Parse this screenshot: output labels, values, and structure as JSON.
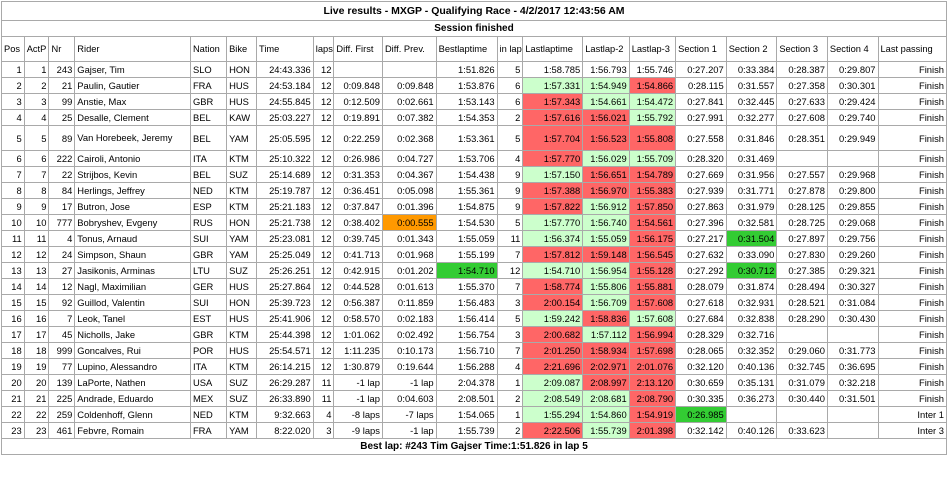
{
  "header": {
    "title": "Live results - MXGP - Qualifying Race - 4/2/2017 12:43:56 AM",
    "status": "Session finished"
  },
  "columns": [
    "Pos",
    "ActP",
    "Nr",
    "Rider",
    "Nation",
    "Bike",
    "Time",
    "laps",
    "Diff. First",
    "Diff. Prev.",
    "Bestlaptime",
    "in lap",
    "Lastlaptime",
    "Lastlap-2",
    "Lastlap-3",
    "Section 1",
    "Section 2",
    "Section 3",
    "Section 4",
    "Last passing"
  ],
  "colors": {
    "green": "#ccffcc",
    "red": "#ff6666",
    "orange": "#ff9900",
    "bright_green": "#33cc33"
  },
  "rows": [
    {
      "cells": [
        "1",
        "1",
        "243",
        "Gajser, Tim",
        "SLO",
        "HON",
        "24:43.336",
        "12",
        "",
        "",
        "1:51.826",
        "5",
        "1:58.785",
        "1:56.793",
        "1:55.746",
        "0:27.207",
        "0:33.384",
        "0:28.387",
        "0:29.807",
        "Finish"
      ],
      "hl": {}
    },
    {
      "cells": [
        "2",
        "2",
        "21",
        "Paulin, Gautier",
        "FRA",
        "HUS",
        "24:53.184",
        "12",
        "0:09.848",
        "0:09.848",
        "1:53.876",
        "6",
        "1:57.331",
        "1:54.949",
        "1:54.866",
        "0:28.115",
        "0:31.557",
        "0:27.358",
        "0:30.301",
        "Finish"
      ],
      "hl": {
        "12": "green",
        "13": "green",
        "14": "red"
      }
    },
    {
      "cells": [
        "3",
        "3",
        "99",
        "Anstie, Max",
        "GBR",
        "HUS",
        "24:55.845",
        "12",
        "0:12.509",
        "0:02.661",
        "1:53.143",
        "6",
        "1:57.343",
        "1:54.661",
        "1:54.472",
        "0:27.841",
        "0:32.445",
        "0:27.633",
        "0:29.424",
        "Finish"
      ],
      "hl": {
        "12": "red",
        "13": "green",
        "14": "green"
      }
    },
    {
      "cells": [
        "4",
        "4",
        "25",
        "Desalle, Clement",
        "BEL",
        "KAW",
        "25:03.227",
        "12",
        "0:19.891",
        "0:07.382",
        "1:54.353",
        "2",
        "1:57.616",
        "1:56.021",
        "1:55.792",
        "0:27.991",
        "0:32.277",
        "0:27.608",
        "0:29.740",
        "Finish"
      ],
      "hl": {
        "12": "red",
        "13": "red",
        "14": "green"
      }
    },
    {
      "cells": [
        "5",
        "5",
        "89",
        "Van Horebeek, Jeremy",
        "BEL",
        "YAM",
        "25:05.595",
        "12",
        "0:22.259",
        "0:02.368",
        "1:53.361",
        "5",
        "1:57.704",
        "1:56.523",
        "1:55.808",
        "0:27.558",
        "0:31.846",
        "0:28.351",
        "0:29.949",
        "Finish"
      ],
      "hl": {
        "12": "red",
        "13": "red",
        "14": "red"
      },
      "tall": true
    },
    {
      "cells": [
        "6",
        "6",
        "222",
        "Cairoli, Antonio",
        "ITA",
        "KTM",
        "25:10.322",
        "12",
        "0:26.986",
        "0:04.727",
        "1:53.706",
        "4",
        "1:57.770",
        "1:56.029",
        "1:55.709",
        "0:28.320",
        "0:31.469",
        "",
        "",
        "Finish"
      ],
      "hl": {
        "12": "red",
        "13": "green",
        "14": "green"
      }
    },
    {
      "cells": [
        "7",
        "7",
        "22",
        "Strijbos, Kevin",
        "BEL",
        "SUZ",
        "25:14.689",
        "12",
        "0:31.353",
        "0:04.367",
        "1:54.438",
        "9",
        "1:57.150",
        "1:56.651",
        "1:54.789",
        "0:27.669",
        "0:31.956",
        "0:27.557",
        "0:29.968",
        "Finish"
      ],
      "hl": {
        "12": "green",
        "13": "red",
        "14": "red"
      }
    },
    {
      "cells": [
        "8",
        "8",
        "84",
        "Herlings, Jeffrey",
        "NED",
        "KTM",
        "25:19.787",
        "12",
        "0:36.451",
        "0:05.098",
        "1:55.361",
        "9",
        "1:57.388",
        "1:56.970",
        "1:55.383",
        "0:27.939",
        "0:31.771",
        "0:27.878",
        "0:29.800",
        "Finish"
      ],
      "hl": {
        "12": "red",
        "13": "red",
        "14": "red"
      }
    },
    {
      "cells": [
        "9",
        "9",
        "17",
        "Butron, Jose",
        "ESP",
        "KTM",
        "25:21.183",
        "12",
        "0:37.847",
        "0:01.396",
        "1:54.875",
        "9",
        "1:57.822",
        "1:56.912",
        "1:57.850",
        "0:27.863",
        "0:31.979",
        "0:28.125",
        "0:29.855",
        "Finish"
      ],
      "hl": {
        "12": "red",
        "13": "green",
        "14": "red"
      }
    },
    {
      "cells": [
        "10",
        "10",
        "777",
        "Bobryshev, Evgeny",
        "RUS",
        "HON",
        "25:21.738",
        "12",
        "0:38.402",
        "0:00.555",
        "1:54.530",
        "5",
        "1:57.770",
        "1:56.740",
        "1:54.561",
        "0:27.396",
        "0:32.581",
        "0:28.725",
        "0:29.068",
        "Finish"
      ],
      "hl": {
        "9": "orange",
        "12": "green",
        "13": "green",
        "14": "red"
      }
    },
    {
      "cells": [
        "11",
        "11",
        "4",
        "Tonus, Arnaud",
        "SUI",
        "YAM",
        "25:23.081",
        "12",
        "0:39.745",
        "0:01.343",
        "1:55.059",
        "11",
        "1:56.374",
        "1:55.059",
        "1:56.175",
        "0:27.217",
        "0:31.504",
        "0:27.897",
        "0:29.756",
        "Finish"
      ],
      "hl": {
        "12": "green",
        "13": "green",
        "14": "red",
        "16": "bright_green"
      }
    },
    {
      "cells": [
        "12",
        "12",
        "24",
        "Simpson, Shaun",
        "GBR",
        "YAM",
        "25:25.049",
        "12",
        "0:41.713",
        "0:01.968",
        "1:55.199",
        "7",
        "1:57.812",
        "1:59.148",
        "1:56.545",
        "0:27.632",
        "0:33.090",
        "0:27.830",
        "0:29.260",
        "Finish"
      ],
      "hl": {
        "12": "red",
        "13": "red",
        "14": "red"
      }
    },
    {
      "cells": [
        "13",
        "13",
        "27",
        "Jasikonis, Arminas",
        "LTU",
        "SUZ",
        "25:26.251",
        "12",
        "0:42.915",
        "0:01.202",
        "1:54.710",
        "12",
        "1:54.710",
        "1:56.954",
        "1:55.128",
        "0:27.292",
        "0:30.712",
        "0:27.385",
        "0:29.321",
        "Finish"
      ],
      "hl": {
        "10": "bright_green",
        "12": "green",
        "13": "green",
        "14": "red",
        "16": "bright_green"
      }
    },
    {
      "cells": [
        "14",
        "14",
        "12",
        "Nagl, Maximilian",
        "GER",
        "HUS",
        "25:27.864",
        "12",
        "0:44.528",
        "0:01.613",
        "1:55.370",
        "7",
        "1:58.774",
        "1:55.806",
        "1:55.881",
        "0:28.079",
        "0:31.874",
        "0:28.494",
        "0:30.327",
        "Finish"
      ],
      "hl": {
        "12": "red",
        "13": "green",
        "14": "red"
      }
    },
    {
      "cells": [
        "15",
        "15",
        "92",
        "Guillod, Valentin",
        "SUI",
        "HON",
        "25:39.723",
        "12",
        "0:56.387",
        "0:11.859",
        "1:56.483",
        "3",
        "2:00.154",
        "1:56.709",
        "1:57.608",
        "0:27.618",
        "0:32.931",
        "0:28.521",
        "0:31.084",
        "Finish"
      ],
      "hl": {
        "12": "red",
        "13": "green",
        "14": "red"
      }
    },
    {
      "cells": [
        "16",
        "16",
        "7",
        "Leok, Tanel",
        "EST",
        "HUS",
        "25:41.906",
        "12",
        "0:58.570",
        "0:02.183",
        "1:56.414",
        "5",
        "1:59.242",
        "1:58.836",
        "1:57.608",
        "0:27.684",
        "0:32.838",
        "0:28.290",
        "0:30.430",
        "Finish"
      ],
      "hl": {
        "12": "green",
        "13": "red",
        "14": "green"
      }
    },
    {
      "cells": [
        "17",
        "17",
        "45",
        "Nicholls, Jake",
        "GBR",
        "KTM",
        "25:44.398",
        "12",
        "1:01.062",
        "0:02.492",
        "1:56.754",
        "3",
        "2:00.682",
        "1:57.112",
        "1:56.994",
        "0:28.329",
        "0:32.716",
        "",
        "",
        "Finish"
      ],
      "hl": {
        "12": "red",
        "13": "green",
        "14": "red"
      }
    },
    {
      "cells": [
        "18",
        "18",
        "999",
        "Goncalves, Rui",
        "POR",
        "HUS",
        "25:54.571",
        "12",
        "1:11.235",
        "0:10.173",
        "1:56.710",
        "7",
        "2:01.250",
        "1:58.934",
        "1:57.698",
        "0:28.065",
        "0:32.352",
        "0:29.060",
        "0:31.773",
        "Finish"
      ],
      "hl": {
        "12": "red",
        "13": "red",
        "14": "red"
      }
    },
    {
      "cells": [
        "19",
        "19",
        "77",
        "Lupino, Alessandro",
        "ITA",
        "KTM",
        "26:14.215",
        "12",
        "1:30.879",
        "0:19.644",
        "1:56.288",
        "4",
        "2:21.696",
        "2:02.971",
        "2:01.076",
        "0:32.120",
        "0:40.136",
        "0:32.745",
        "0:36.695",
        "Finish"
      ],
      "hl": {
        "12": "red",
        "13": "red",
        "14": "red"
      }
    },
    {
      "cells": [
        "20",
        "20",
        "139",
        "LaPorte, Nathen",
        "USA",
        "SUZ",
        "26:29.287",
        "11",
        "-1 lap",
        "-1 lap",
        "2:04.378",
        "1",
        "2:09.087",
        "2:08.997",
        "2:13.120",
        "0:30.659",
        "0:35.131",
        "0:31.079",
        "0:32.218",
        "Finish"
      ],
      "hl": {
        "12": "green",
        "13": "red",
        "14": "red"
      }
    },
    {
      "cells": [
        "21",
        "21",
        "225",
        "Andrade, Eduardo",
        "MEX",
        "SUZ",
        "26:33.890",
        "11",
        "-1 lap",
        "0:04.603",
        "2:08.501",
        "2",
        "2:08.549",
        "2:08.681",
        "2:08.790",
        "0:30.335",
        "0:36.273",
        "0:30.440",
        "0:31.501",
        "Finish"
      ],
      "hl": {
        "12": "green",
        "13": "green",
        "14": "red"
      }
    },
    {
      "cells": [
        "22",
        "22",
        "259",
        "Coldenhoff, Glenn",
        "NED",
        "KTM",
        "9:32.663",
        "4",
        "-8 laps",
        "-7 laps",
        "1:54.065",
        "1",
        "1:55.294",
        "1:54.860",
        "1:54.919",
        "0:26.985",
        "",
        "",
        "",
        "Inter 1"
      ],
      "hl": {
        "12": "green",
        "13": "green",
        "14": "red",
        "15": "bright_green"
      }
    },
    {
      "cells": [
        "23",
        "23",
        "461",
        "Febvre, Romain",
        "FRA",
        "YAM",
        "8:22.020",
        "3",
        "-9 laps",
        "-1 lap",
        "1:55.739",
        "2",
        "2:22.506",
        "1:55.739",
        "2:01.398",
        "0:32.142",
        "0:40.126",
        "0:33.623",
        "",
        "Inter 3"
      ],
      "hl": {
        "12": "red",
        "13": "green",
        "14": "red"
      }
    }
  ],
  "footer": {
    "best_lap": "Best lap: #243 Tim Gajser Time:1:51.826 in lap 5"
  }
}
